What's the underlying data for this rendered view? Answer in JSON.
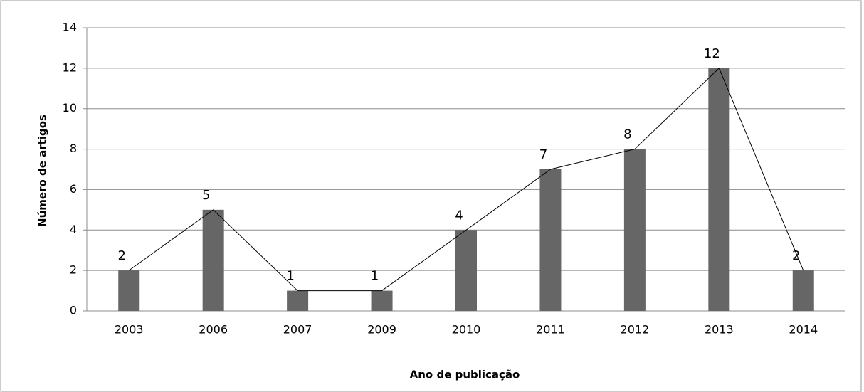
{
  "chart_data": {
    "type": "bar",
    "x_label": "Ano de publicação",
    "y_label": "Número de artigos",
    "categories": [
      "2003",
      "2006",
      "2007",
      "2009",
      "2010",
      "2011",
      "2012",
      "2013",
      "2014"
    ],
    "values": [
      2,
      5,
      1,
      1,
      4,
      7,
      8,
      12,
      2
    ],
    "color": "#666666",
    "line_overlay": true,
    "line_color": "#000000",
    "show_value_labels": true,
    "ylim": [
      0,
      14
    ],
    "yticks": [
      0,
      2,
      4,
      6,
      8,
      10,
      12,
      14
    ],
    "grid": true
  }
}
